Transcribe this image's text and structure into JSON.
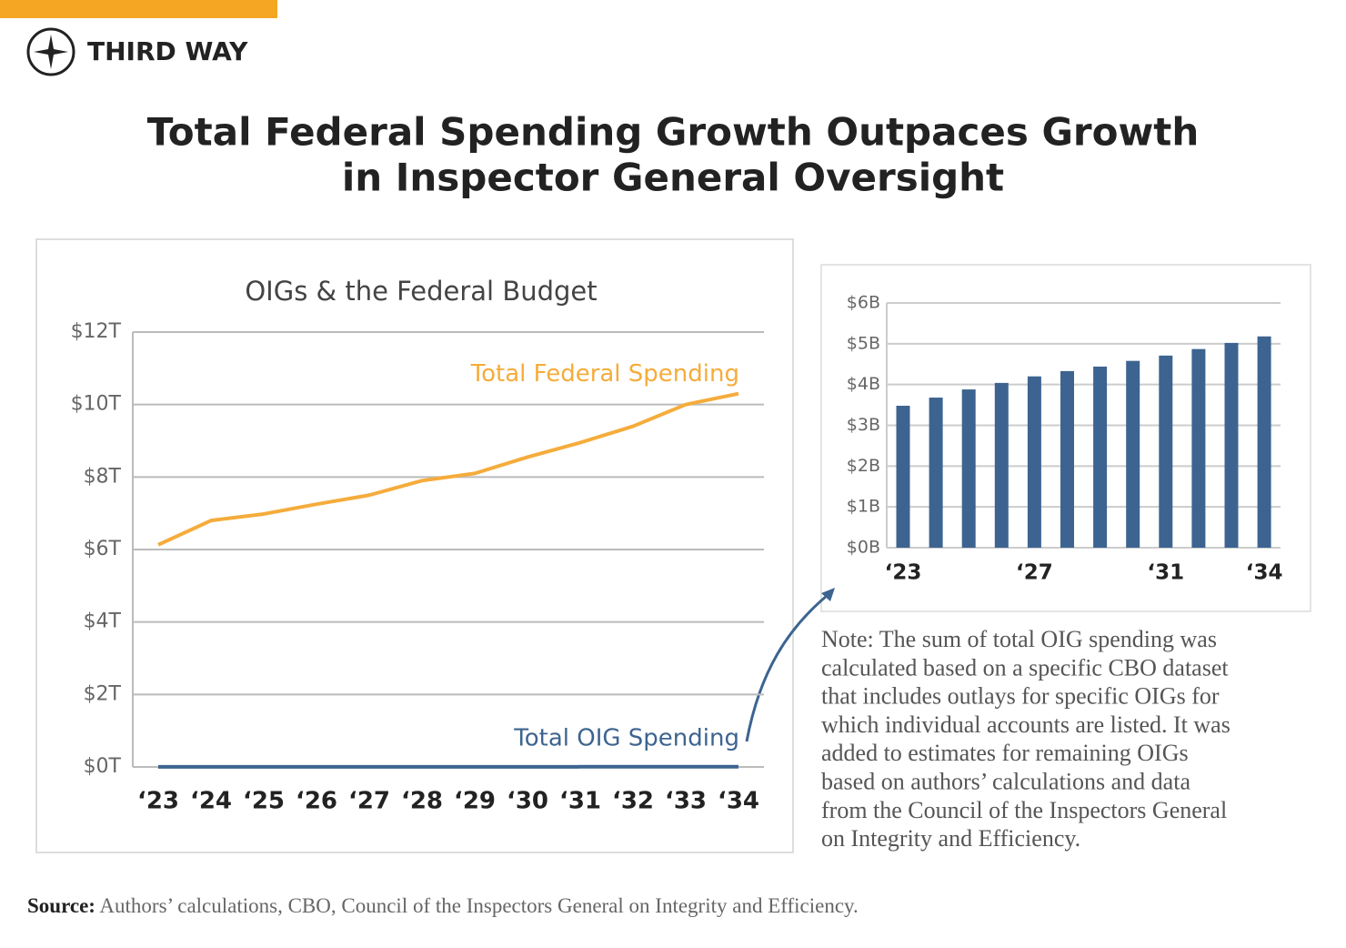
{
  "header": {
    "brand": "THIRD WAY",
    "title_lines": [
      "Total Federal Spending Growth Outpaces Growth",
      "in Inspector General Oversight"
    ]
  },
  "chart_data": [
    {
      "type": "line",
      "title": "OIGs & the Federal Budget",
      "categories": [
        "‘23",
        "‘24",
        "‘25",
        "‘26",
        "‘27",
        "‘28",
        "‘29",
        "‘30",
        "‘31",
        "‘32",
        "‘33",
        "‘34"
      ],
      "series": [
        {
          "name": "Total Federal Spending",
          "color": "#f5ac3b",
          "values": [
            6.13,
            6.8,
            6.98,
            7.25,
            7.5,
            7.9,
            8.1,
            8.55,
            8.95,
            9.4,
            10.0,
            10.3
          ]
        },
        {
          "name": "Total OIG Spending",
          "color": "#3d6490",
          "values": [
            0.00348,
            0.00368,
            0.00388,
            0.00404,
            0.0042,
            0.00433,
            0.00444,
            0.00458,
            0.00471,
            0.00487,
            0.00502,
            0.00518
          ]
        }
      ],
      "ylim": [
        0,
        12
      ],
      "yticks": [
        {
          "value": 0,
          "label": "$0T"
        },
        {
          "value": 2,
          "label": "$2T"
        },
        {
          "value": 4,
          "label": "$4T"
        },
        {
          "value": 6,
          "label": "$6T"
        },
        {
          "value": 8,
          "label": "$8T"
        },
        {
          "value": 10,
          "label": "$10T"
        },
        {
          "value": 12,
          "label": "$12T"
        }
      ],
      "grid": true
    },
    {
      "type": "bar",
      "categories": [
        "‘23",
        null,
        null,
        null,
        "‘27",
        null,
        null,
        null,
        "‘31",
        null,
        null,
        "‘34"
      ],
      "values": [
        3.48,
        3.68,
        3.88,
        4.04,
        4.2,
        4.33,
        4.44,
        4.58,
        4.71,
        4.87,
        5.02,
        5.18
      ],
      "color": "#3d6490",
      "ylim": [
        0,
        6
      ],
      "yticks": [
        {
          "value": 0,
          "label": "$0B"
        },
        {
          "value": 1,
          "label": "$1B"
        },
        {
          "value": 2,
          "label": "$2B"
        },
        {
          "value": 3,
          "label": "$3B"
        },
        {
          "value": 4,
          "label": "$4B"
        },
        {
          "value": 5,
          "label": "$5B"
        },
        {
          "value": 6,
          "label": "$6B"
        }
      ],
      "grid": true
    }
  ],
  "note": [
    "Note: The sum of total OIG spending was",
    "calculated based on a specific CBO dataset",
    "that includes outlays for specific OIGs for",
    "which individual accounts are listed. It was",
    "added to estimates for remaining OIGs",
    "based on authors’ calculations and data",
    "from the Council of the Inspectors General",
    "on Integrity and Efficiency."
  ],
  "source": {
    "label": "Source:",
    "text": " Authors’ calculations, CBO, Council of the Inspectors General on Integrity and Efficiency."
  }
}
